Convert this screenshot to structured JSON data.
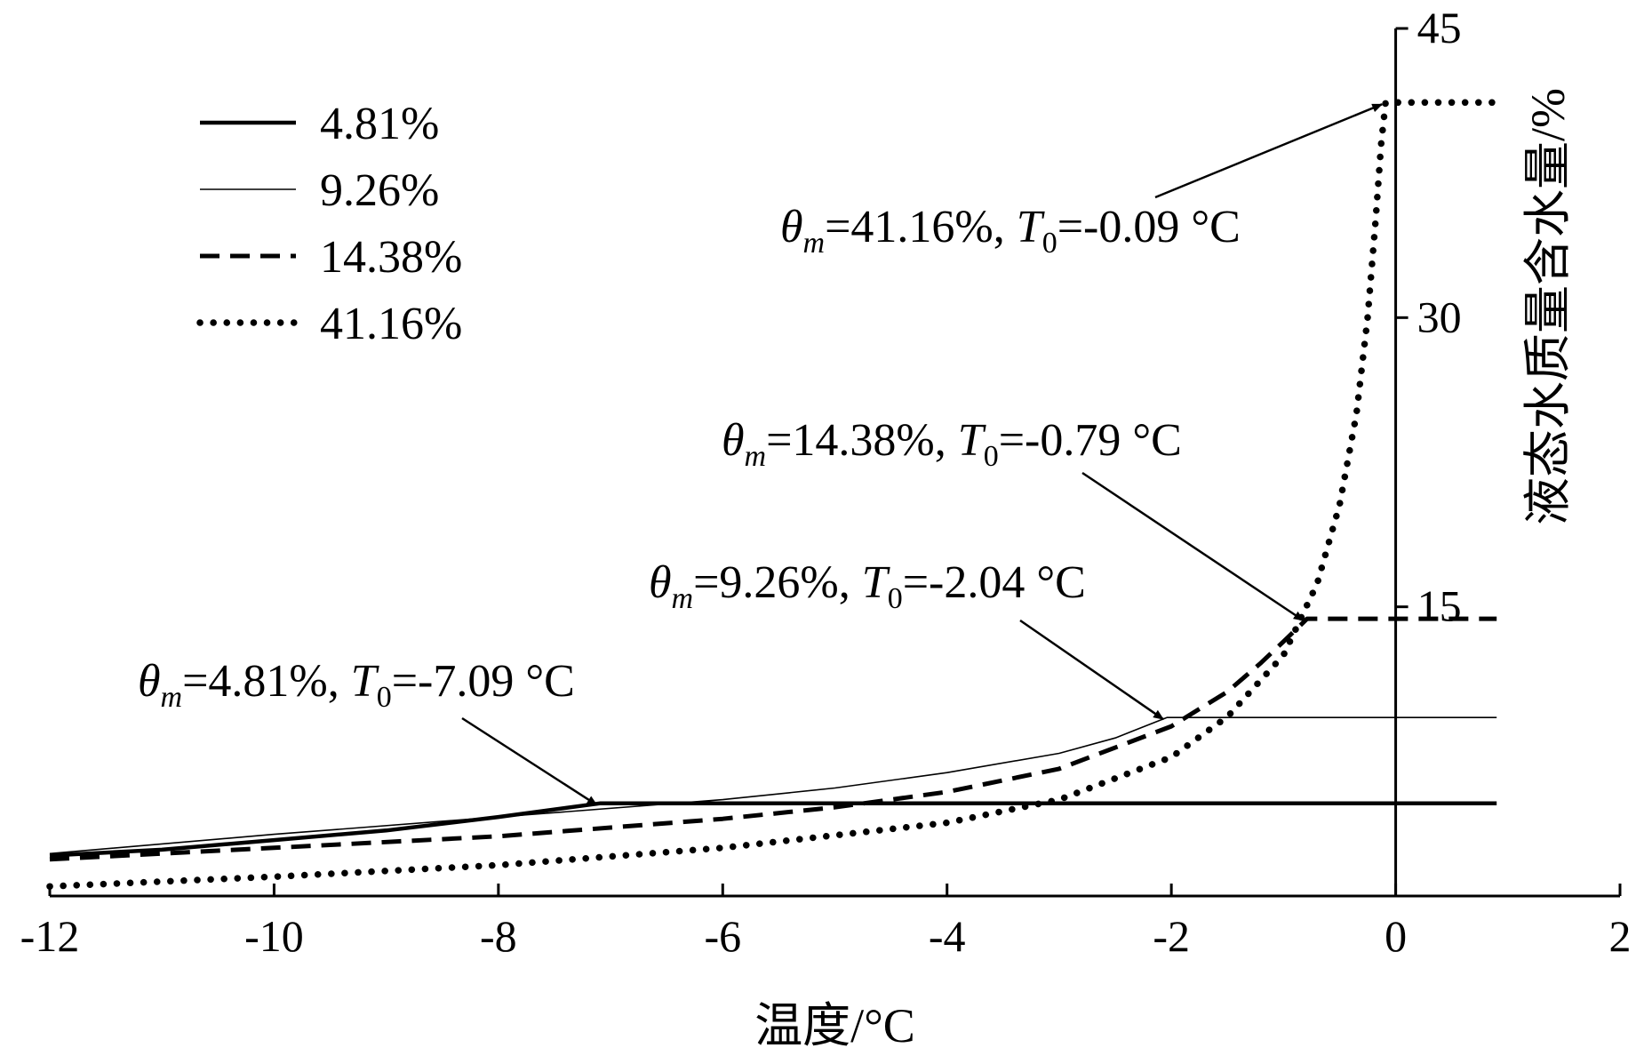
{
  "chart_data": {
    "type": "line",
    "title": "",
    "xlabel": "温度/°C",
    "ylabel": "液态水质量含水量/%",
    "xlim": [
      -12,
      2
    ],
    "ylim": [
      0,
      45
    ],
    "x_ticks": [
      "-12",
      "-10",
      "-8",
      "-6",
      "-4",
      "-2",
      "0",
      "2"
    ],
    "y_ticks": [
      "15",
      "30",
      "45"
    ],
    "legend_position": "top-left",
    "series": [
      {
        "name": "4.81%",
        "style": "solid-thick",
        "theta_m": 4.81,
        "T0": -7.09,
        "x": [
          -12,
          -11,
          -10,
          -9,
          -8,
          -7.09,
          -6,
          -4,
          -2,
          0,
          0.9
        ],
        "y": [
          2.1,
          2.4,
          2.9,
          3.4,
          4.1,
          4.81,
          4.81,
          4.81,
          4.81,
          4.81,
          4.81
        ]
      },
      {
        "name": "9.26%",
        "style": "solid-thin",
        "theta_m": 9.26,
        "T0": -2.04,
        "x": [
          -12,
          -10,
          -8,
          -6,
          -5,
          -4,
          -3,
          -2.5,
          -2.04,
          -1,
          0,
          0.9
        ],
        "y": [
          2.2,
          3.2,
          4.1,
          5.0,
          5.6,
          6.4,
          7.4,
          8.2,
          9.26,
          9.26,
          9.26,
          9.26
        ]
      },
      {
        "name": "14.38%",
        "style": "dashed",
        "theta_m": 14.38,
        "T0": -0.79,
        "x": [
          -12,
          -10,
          -8,
          -6,
          -5,
          -4,
          -3,
          -2,
          -1.5,
          -1.2,
          -1.0,
          -0.79,
          0,
          0.9
        ],
        "y": [
          1.9,
          2.5,
          3.1,
          4.0,
          4.6,
          5.4,
          6.6,
          8.8,
          10.6,
          12.1,
          13.2,
          14.38,
          14.38,
          14.38
        ]
      },
      {
        "name": "41.16%",
        "style": "dotted",
        "theta_m": 41.16,
        "T0": -0.09,
        "x": [
          -12,
          -10,
          -8,
          -6,
          -4,
          -3,
          -2,
          -1.5,
          -1.0,
          -0.7,
          -0.5,
          -0.35,
          -0.25,
          -0.18,
          -0.13,
          -0.09,
          0,
          0.9
        ],
        "y": [
          0.5,
          1.0,
          1.6,
          2.5,
          3.8,
          5.0,
          7.2,
          9.3,
          12.5,
          16.2,
          20.3,
          25.0,
          30.0,
          35.0,
          39.0,
          41.16,
          41.16,
          41.16
        ]
      }
    ],
    "annotations": [
      {
        "theta": "=4.81%, ",
        "t0": "=-7.09 °C",
        "target_x": -7.09,
        "target_y": 4.81
      },
      {
        "theta": "=9.26%, ",
        "t0": "=-2.04 °C",
        "target_x": -2.04,
        "target_y": 9.26
      },
      {
        "theta": "=14.38%, ",
        "t0": "=-0.79 °C",
        "target_x": -0.79,
        "target_y": 14.38
      },
      {
        "theta": "=41.16%, ",
        "t0": "=-0.09 °C",
        "target_x": -0.09,
        "target_y": 41.16
      }
    ]
  }
}
